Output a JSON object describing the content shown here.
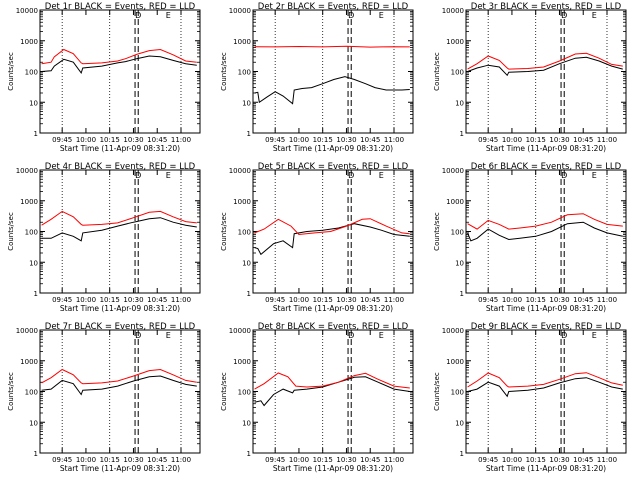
{
  "colors": {
    "events": "#000000",
    "lld": "#ff0000",
    "axes": "#000000",
    "background": "#ffffff"
  },
  "chart_data": [
    {
      "type": "line",
      "title": "Det 1r BLACK = Events, RED = LLD",
      "xlabel": "Start Time (11-Apr-09 08:31:20)",
      "ylabel": "Counts/sec",
      "x_ticks": [
        "09:45",
        "10:00",
        "10:15",
        "10:30",
        "10:45",
        "11:00"
      ],
      "y_ticks": [
        "1",
        "10",
        "100",
        "1000",
        "10000"
      ],
      "ylim": [
        1,
        10000
      ],
      "log_y": true,
      "top_markers": [
        "D",
        "E"
      ],
      "series": [
        {
          "color": "black",
          "x": [
            "09:32",
            "09:38",
            "09:40",
            "09:46",
            "09:52",
            "09:57",
            "09:58",
            "10:10",
            "10:20",
            "10:25",
            "10:32",
            "10:40",
            "10:47",
            "10:55",
            "11:03",
            "11:10"
          ],
          "y": [
            100,
            105,
            150,
            250,
            200,
            90,
            130,
            150,
            190,
            210,
            260,
            320,
            300,
            230,
            180,
            160
          ]
        },
        {
          "color": "red",
          "x": [
            "09:32",
            "09:38",
            "09:40",
            "09:46",
            "09:52",
            "09:57",
            "09:58",
            "10:10",
            "10:20",
            "10:25",
            "10:32",
            "10:40",
            "10:47",
            "10:55",
            "11:03",
            "11:10"
          ],
          "y": [
            180,
            200,
            300,
            520,
            380,
            190,
            180,
            190,
            220,
            260,
            360,
            480,
            520,
            350,
            220,
            200
          ]
        }
      ]
    },
    {
      "type": "line",
      "title": "Det 2r BLACK = Events, RED = LLD",
      "xlabel": "Start Time (11-Apr-09 08:31:20)",
      "ylabel": "Counts/sec",
      "x_ticks": [
        "09:45",
        "10:00",
        "10:15",
        "10:30",
        "10:45",
        "11:00"
      ],
      "y_ticks": [
        "1",
        "10",
        "100",
        "1000",
        "10000"
      ],
      "ylim": [
        1,
        10000
      ],
      "log_y": true,
      "top_markers": [
        "D",
        "E"
      ],
      "series": [
        {
          "color": "black",
          "x": [
            "09:32",
            "09:34",
            "09:35",
            "09:40",
            "09:45",
            "09:50",
            "09:56",
            "09:57",
            "10:02",
            "10:08",
            "10:15",
            "10:22",
            "10:29",
            "10:35",
            "10:42",
            "10:48",
            "10:55",
            "11:05",
            "11:10"
          ],
          "y": [
            20,
            21,
            10,
            15,
            22,
            16,
            9,
            25,
            28,
            30,
            40,
            55,
            68,
            55,
            40,
            30,
            25,
            25,
            26
          ]
        },
        {
          "color": "red",
          "x": [
            "09:32",
            "09:45",
            "10:00",
            "10:15",
            "10:30",
            "10:45",
            "11:00",
            "11:10"
          ],
          "y": [
            640,
            630,
            650,
            630,
            660,
            620,
            640,
            630
          ]
        }
      ]
    },
    {
      "type": "line",
      "title": "Det 3r BLACK = Events, RED = LLD",
      "xlabel": "Start Time (11-Apr-09 08:31:20)",
      "ylabel": "Counts/sec",
      "x_ticks": [
        "09:45",
        "10:00",
        "10:15",
        "10:30",
        "10:45",
        "11:00"
      ],
      "y_ticks": [
        "1",
        "10",
        "100",
        "1000",
        "10000"
      ],
      "ylim": [
        1,
        10000
      ],
      "log_y": true,
      "top_markers": [
        "D",
        "E"
      ],
      "series": [
        {
          "color": "black",
          "x": [
            "09:32",
            "09:38",
            "09:45",
            "09:52",
            "09:57",
            "09:58",
            "10:10",
            "10:20",
            "10:30",
            "10:40",
            "10:47",
            "10:55",
            "11:03",
            "11:10"
          ],
          "y": [
            100,
            130,
            160,
            140,
            75,
            95,
            100,
            110,
            180,
            270,
            290,
            220,
            150,
            120
          ]
        },
        {
          "color": "red",
          "x": [
            "09:32",
            "09:38",
            "09:45",
            "09:52",
            "09:57",
            "09:58",
            "10:10",
            "10:20",
            "10:30",
            "10:40",
            "10:47",
            "10:55",
            "11:03",
            "11:10"
          ],
          "y": [
            120,
            180,
            320,
            230,
            130,
            120,
            125,
            140,
            220,
            370,
            390,
            270,
            170,
            150
          ]
        }
      ]
    },
    {
      "type": "line",
      "title": "Det 4r BLACK = Events, RED = LLD",
      "xlabel": "Start Time (11-Apr-09 08:31:20)",
      "ylabel": "Counts/sec",
      "x_ticks": [
        "09:45",
        "10:00",
        "10:15",
        "10:30",
        "10:45",
        "11:00"
      ],
      "y_ticks": [
        "1",
        "10",
        "100",
        "1000",
        "10000"
      ],
      "ylim": [
        1,
        10000
      ],
      "log_y": true,
      "top_markers": [
        "D",
        "E"
      ],
      "series": [
        {
          "color": "black",
          "x": [
            "09:32",
            "09:38",
            "09:45",
            "09:52",
            "09:57",
            "09:58",
            "10:10",
            "10:20",
            "10:30",
            "10:40",
            "10:47",
            "10:55",
            "11:03",
            "11:10"
          ],
          "y": [
            60,
            60,
            90,
            70,
            50,
            90,
            110,
            150,
            200,
            260,
            280,
            200,
            160,
            140
          ]
        },
        {
          "color": "red",
          "x": [
            "09:32",
            "09:38",
            "09:45",
            "09:52",
            "09:57",
            "09:58",
            "10:10",
            "10:20",
            "10:30",
            "10:40",
            "10:47",
            "10:55",
            "11:03",
            "11:10"
          ],
          "y": [
            160,
            250,
            450,
            300,
            170,
            160,
            170,
            190,
            280,
            420,
            450,
            300,
            210,
            190
          ]
        }
      ]
    },
    {
      "type": "line",
      "title": "Det 5r BLACK = Events, RED = LLD",
      "xlabel": "Start Time (11-Apr-09 08:31:20)",
      "ylabel": "Counts/sec",
      "x_ticks": [
        "09:45",
        "10:00",
        "10:15",
        "10:30",
        "10:45",
        "11:00"
      ],
      "y_ticks": [
        "1",
        "10",
        "100",
        "1000",
        "10000"
      ],
      "ylim": [
        1,
        10000
      ],
      "log_y": true,
      "top_markers": [
        "D",
        "E"
      ],
      "series": [
        {
          "color": "black",
          "x": [
            "09:32",
            "09:34",
            "09:36",
            "09:44",
            "09:50",
            "09:56",
            "09:57",
            "10:05",
            "10:15",
            "10:25",
            "10:35",
            "10:45",
            "10:52",
            "11:00",
            "11:10"
          ],
          "y": [
            30,
            28,
            18,
            40,
            50,
            30,
            85,
            100,
            110,
            130,
            180,
            140,
            110,
            80,
            70
          ]
        },
        {
          "color": "red",
          "x": [
            "09:32",
            "09:38",
            "09:47",
            "09:55",
            "10:00",
            "10:10",
            "10:20",
            "10:30",
            "10:40",
            "10:45",
            "10:55",
            "11:05",
            "11:10"
          ],
          "y": [
            90,
            120,
            250,
            150,
            80,
            90,
            100,
            150,
            250,
            260,
            150,
            90,
            85
          ]
        }
      ]
    },
    {
      "type": "line",
      "title": "Det 6r BLACK = Events, RED = LLD",
      "xlabel": "Start Time (11-Apr-09 08:31:20)",
      "ylabel": "Counts/sec",
      "x_ticks": [
        "09:45",
        "10:00",
        "10:15",
        "10:30",
        "10:45",
        "11:00"
      ],
      "y_ticks": [
        "1",
        "10",
        "100",
        "1000",
        "10000"
      ],
      "ylim": [
        1,
        10000
      ],
      "log_y": true,
      "top_markers": [
        "D",
        "E"
      ],
      "series": [
        {
          "color": "black",
          "x": [
            "09:32",
            "09:34",
            "09:38",
            "09:45",
            "09:52",
            "09:58",
            "10:05",
            "10:15",
            "10:25",
            "10:35",
            "10:45",
            "10:52",
            "11:00",
            "11:10"
          ],
          "y": [
            90,
            50,
            60,
            120,
            75,
            55,
            60,
            70,
            100,
            180,
            200,
            130,
            90,
            70
          ]
        },
        {
          "color": "red",
          "x": [
            "09:32",
            "09:38",
            "09:45",
            "09:52",
            "09:58",
            "10:05",
            "10:15",
            "10:25",
            "10:35",
            "10:45",
            "10:52",
            "11:00",
            "11:10"
          ],
          "y": [
            180,
            120,
            230,
            170,
            120,
            130,
            150,
            200,
            350,
            380,
            250,
            170,
            150
          ]
        }
      ]
    },
    {
      "type": "line",
      "title": "Det 7r BLACK = Events, RED = LLD",
      "xlabel": "Start Time (11-Apr-09 08:31:20)",
      "ylabel": "Counts/sec",
      "x_ticks": [
        "09:45",
        "10:00",
        "10:15",
        "10:30",
        "10:45",
        "11:00"
      ],
      "y_ticks": [
        "1",
        "10",
        "100",
        "1000",
        "10000"
      ],
      "ylim": [
        1,
        10000
      ],
      "log_y": true,
      "top_markers": [
        "D",
        "E"
      ],
      "series": [
        {
          "color": "black",
          "x": [
            "09:32",
            "09:38",
            "09:45",
            "09:52",
            "09:57",
            "09:58",
            "10:10",
            "10:20",
            "10:30",
            "10:40",
            "10:47",
            "10:55",
            "11:03",
            "11:10"
          ],
          "y": [
            110,
            120,
            230,
            180,
            80,
            110,
            120,
            150,
            220,
            300,
            320,
            230,
            170,
            150
          ]
        },
        {
          "color": "red",
          "x": [
            "09:32",
            "09:38",
            "09:45",
            "09:52",
            "09:57",
            "09:58",
            "10:10",
            "10:20",
            "10:30",
            "10:40",
            "10:47",
            "10:55",
            "11:03",
            "11:10"
          ],
          "y": [
            190,
            280,
            520,
            350,
            190,
            180,
            190,
            220,
            320,
            480,
            520,
            350,
            230,
            200
          ]
        }
      ]
    },
    {
      "type": "line",
      "title": "Det 8r BLACK = Events, RED = LLD",
      "xlabel": "Start Time (11-Apr-09 08:31:20)",
      "ylabel": "Counts/sec",
      "x_ticks": [
        "09:45",
        "10:00",
        "10:15",
        "10:30",
        "10:45",
        "11:00"
      ],
      "y_ticks": [
        "1",
        "10",
        "100",
        "1000",
        "10000"
      ],
      "ylim": [
        1,
        10000
      ],
      "log_y": true,
      "top_markers": [
        "D",
        "E"
      ],
      "series": [
        {
          "color": "black",
          "x": [
            "09:32",
            "09:36",
            "09:38",
            "09:44",
            "09:50",
            "09:56",
            "09:57",
            "10:05",
            "10:15",
            "10:25",
            "10:35",
            "10:42",
            "10:50",
            "11:00",
            "11:10"
          ],
          "y": [
            45,
            50,
            35,
            80,
            120,
            90,
            110,
            120,
            140,
            200,
            290,
            300,
            200,
            120,
            100
          ]
        },
        {
          "color": "red",
          "x": [
            "09:32",
            "09:38",
            "09:47",
            "09:53",
            "09:58",
            "10:05",
            "10:15",
            "10:25",
            "10:35",
            "10:42",
            "10:50",
            "11:00",
            "11:10"
          ],
          "y": [
            120,
            180,
            400,
            300,
            150,
            140,
            150,
            200,
            330,
            390,
            250,
            150,
            130
          ]
        }
      ]
    },
    {
      "type": "line",
      "title": "Det 9r BLACK = Events, RED = LLD",
      "xlabel": "Start Time (11-Apr-09 08:31:20)",
      "ylabel": "Counts/sec",
      "x_ticks": [
        "09:45",
        "10:00",
        "10:15",
        "10:30",
        "10:45",
        "11:00"
      ],
      "y_ticks": [
        "1",
        "10",
        "100",
        "1000",
        "10000"
      ],
      "ylim": [
        1,
        10000
      ],
      "log_y": true,
      "top_markers": [
        "D",
        "E"
      ],
      "series": [
        {
          "color": "black",
          "x": [
            "09:32",
            "09:38",
            "09:45",
            "09:52",
            "09:57",
            "09:58",
            "10:10",
            "10:20",
            "10:30",
            "10:40",
            "10:47",
            "10:55",
            "11:03",
            "11:10"
          ],
          "y": [
            100,
            120,
            200,
            150,
            70,
            100,
            110,
            130,
            190,
            260,
            280,
            200,
            140,
            120
          ]
        },
        {
          "color": "red",
          "x": [
            "09:32",
            "09:38",
            "09:45",
            "09:52",
            "09:57",
            "09:58",
            "10:10",
            "10:20",
            "10:30",
            "10:40",
            "10:47",
            "10:55",
            "11:03",
            "11:10"
          ],
          "y": [
            140,
            220,
            400,
            280,
            150,
            140,
            150,
            170,
            250,
            380,
            410,
            280,
            190,
            160
          ]
        }
      ]
    }
  ]
}
